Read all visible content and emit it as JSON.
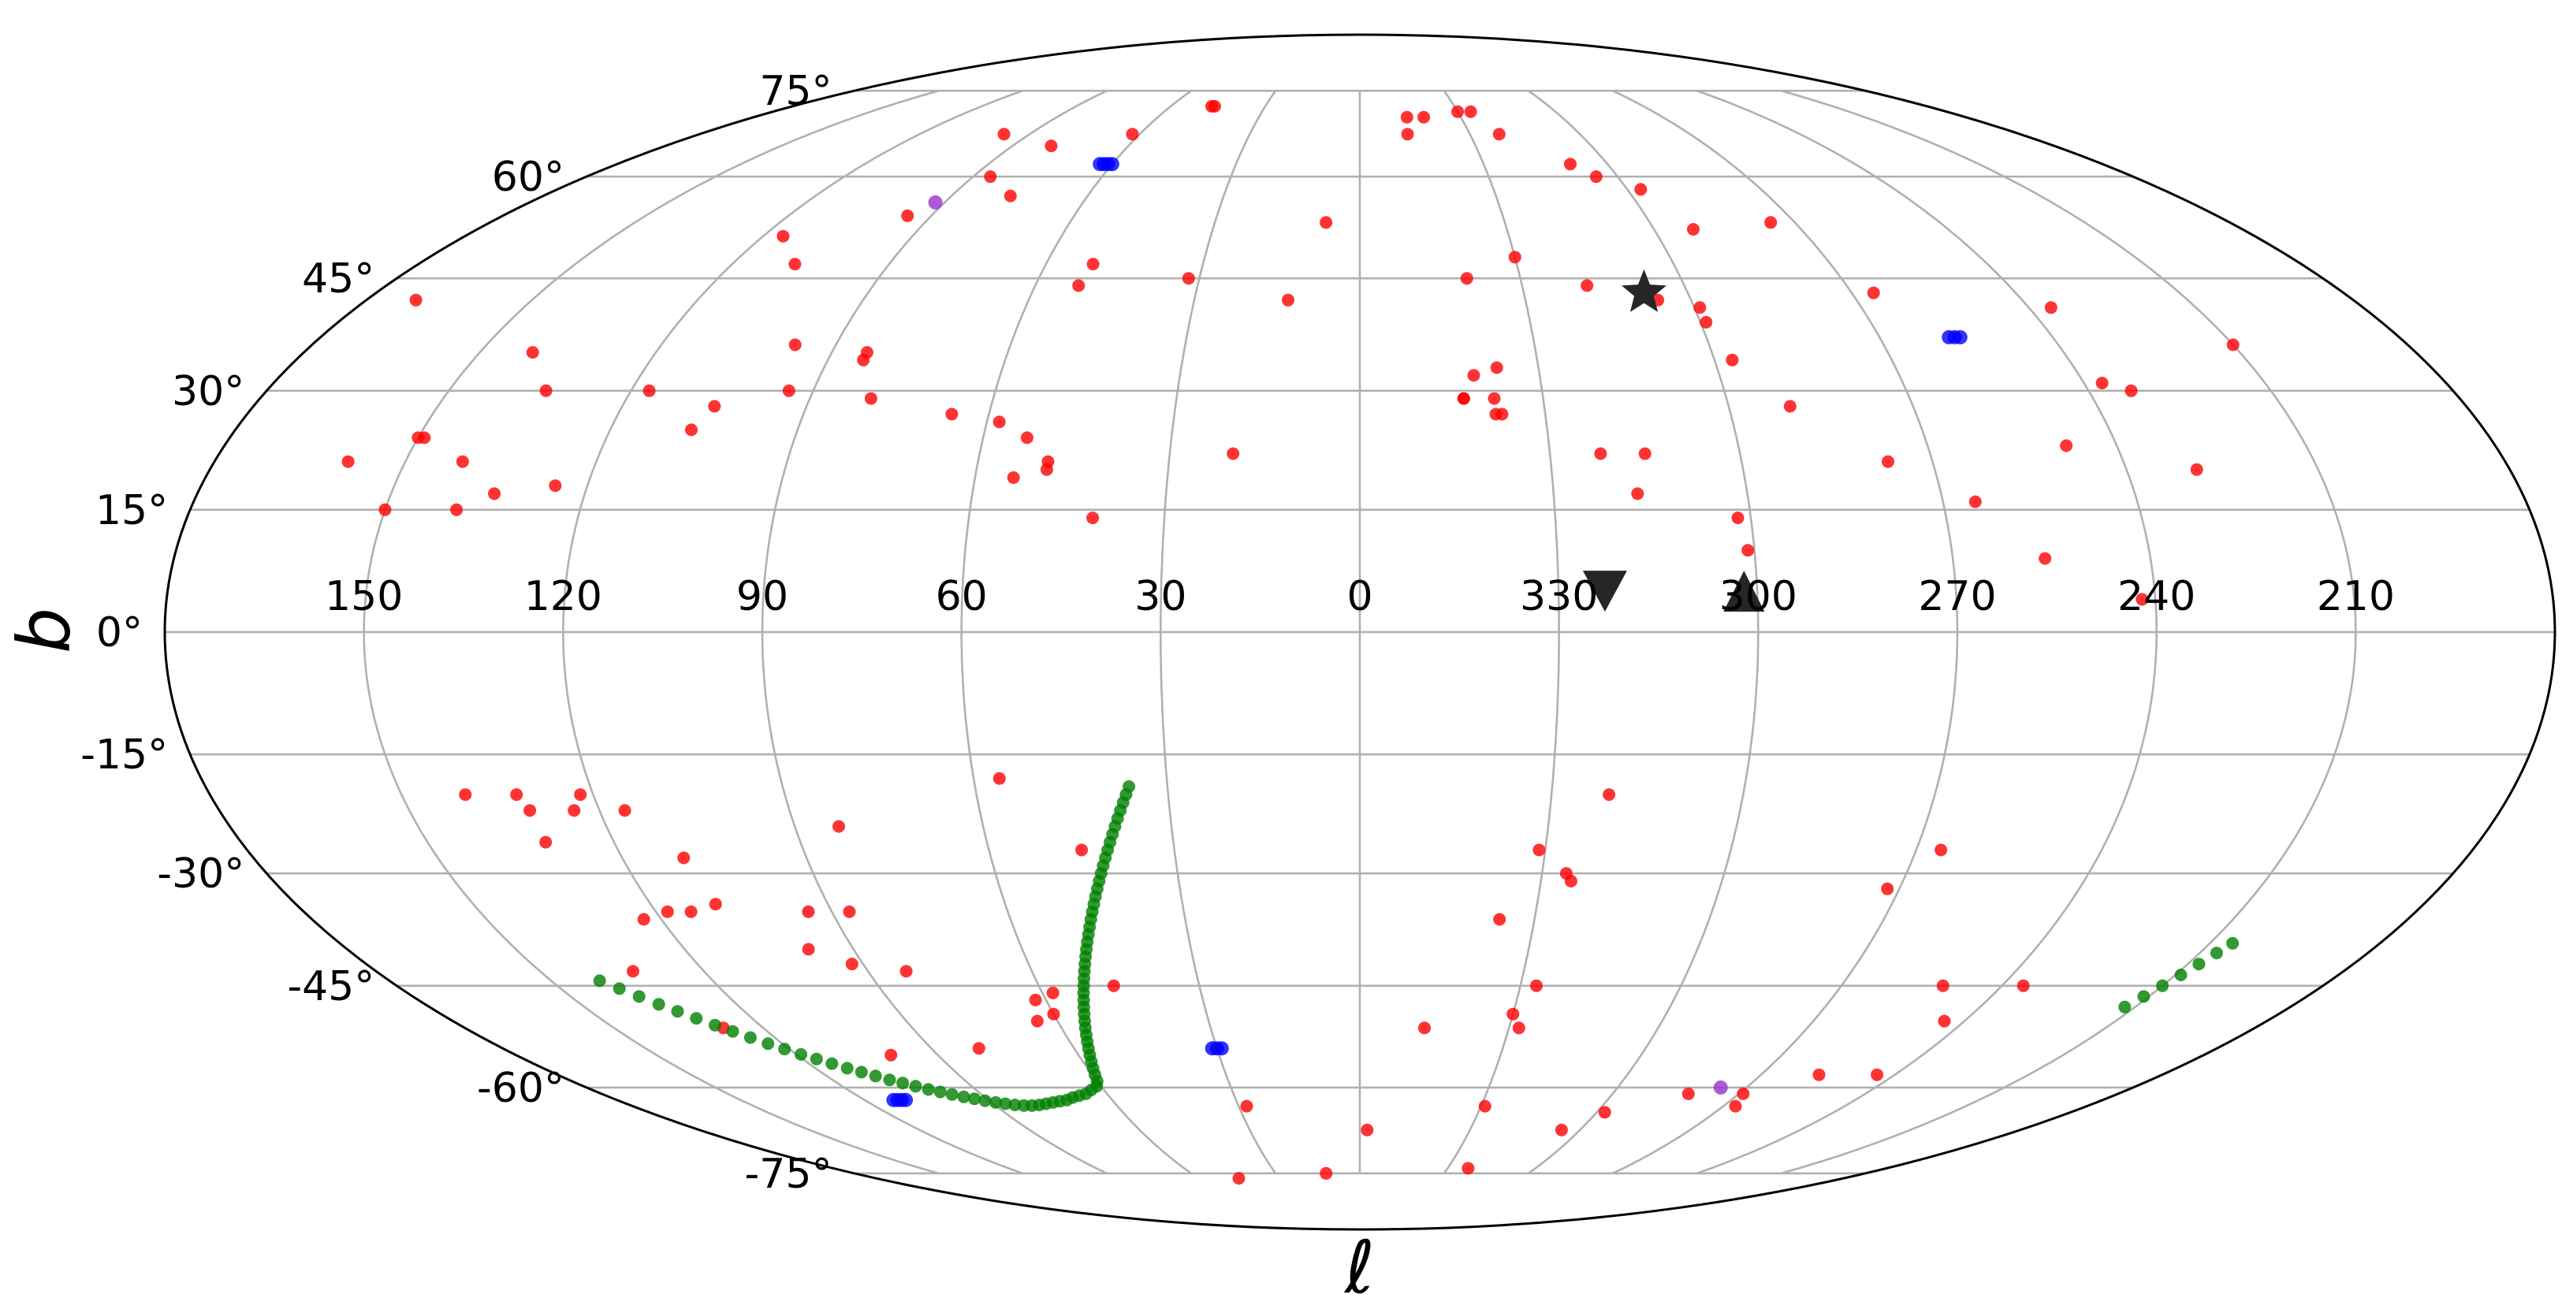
{
  "chart_data": {
    "type": "scatter",
    "projection": "mollweide",
    "grid": true,
    "xlabel": "ℓ",
    "ylabel": "b",
    "xticks": [
      "150",
      "120",
      "90",
      "60",
      "30",
      "0",
      "330",
      "300",
      "270",
      "240",
      "210"
    ],
    "yticks": [
      "75°",
      "60°",
      "45°",
      "30°",
      "15°",
      "0°",
      "-15°",
      "-30°",
      "-45°",
      "-60°",
      "-75°"
    ],
    "colors": {
      "red": "#ff0000",
      "blue": "#0000ff",
      "green": "#008000",
      "purple": "#9932cc",
      "marker": "#262626"
    },
    "series": [
      {
        "color": "red",
        "points": [
          [
            47,
            72
          ],
          [
            46,
            72
          ],
          [
            80,
            65
          ],
          [
            -30,
            71
          ],
          [
            -34,
            71
          ],
          [
            -19,
            70
          ],
          [
            -14,
            70
          ],
          [
            -13,
            67
          ],
          [
            -38,
            67
          ],
          [
            -51,
            62
          ],
          [
            -55,
            60
          ],
          [
            -63,
            58
          ],
          [
            -85,
            53
          ],
          [
            -68,
            52
          ],
          [
            -94,
            43
          ],
          [
            97,
            67
          ],
          [
            62,
            67
          ],
          [
            77,
            57
          ],
          [
            95,
            54
          ],
          [
            86,
            60
          ],
          [
            108,
            47
          ],
          [
            116,
            51
          ],
          [
            171,
            42
          ],
          [
            141,
            35
          ],
          [
            117,
            30
          ],
          [
            134,
            30
          ],
          [
            149,
            24
          ],
          [
            141,
            21
          ],
          [
            84,
            35
          ],
          [
            52,
            44
          ],
          [
            51,
            47
          ],
          [
            32,
            45
          ],
          [
            13,
            42
          ],
          [
            7,
            53
          ],
          [
            -20,
            45
          ],
          [
            -30,
            48
          ],
          [
            -42,
            44
          ],
          [
            -61,
            41
          ],
          [
            -61,
            39
          ],
          [
            -54,
            42
          ],
          [
            -23,
            33
          ],
          [
            -38,
            22
          ],
          [
            -124,
            41
          ],
          [
            -123,
            31
          ],
          [
            -127,
            30
          ],
          [
            -150,
            36
          ],
          [
            -112,
            23
          ],
          [
            -131,
            20
          ],
          [
            -63,
            34
          ],
          [
            -70,
            28
          ],
          [
            -83,
            21
          ],
          [
            -95,
            16
          ],
          [
            -104,
            9
          ],
          [
            -118,
            4
          ],
          [
            -17,
            29
          ],
          [
            -17,
            29
          ],
          [
            -22,
            29
          ],
          [
            -22,
            27
          ],
          [
            -23,
            27
          ],
          [
            -45,
            22
          ],
          [
            -43,
            17
          ],
          [
            -58,
            14
          ],
          [
            -59,
            10
          ],
          [
            -19,
            32
          ],
          [
            66,
            27
          ],
          [
            58,
            26
          ],
          [
            54,
            19
          ],
          [
            53,
            24
          ],
          [
            49,
            21
          ],
          [
            49,
            20
          ],
          [
            41,
            14
          ],
          [
            20,
            22
          ],
          [
            97,
            36
          ],
          [
            94,
            30
          ],
          [
            80,
            29
          ],
          [
            107,
            25
          ],
          [
            105,
            28
          ],
          [
            84,
            34
          ],
          [
            150,
            24
          ],
          [
            150,
            15
          ],
          [
            159,
            21
          ],
          [
            134,
            17
          ],
          [
            139,
            15
          ],
          [
            125,
            18
          ],
          [
            -39,
            -20
          ],
          [
            -29,
            -27
          ],
          [
            -34,
            -30
          ],
          [
            -88,
            -32
          ],
          [
            -94,
            -27
          ],
          [
            -109,
            -45
          ],
          [
            -116,
            -50
          ],
          [
            -124,
            -45
          ],
          [
            -91,
            -61
          ],
          [
            122,
            -20
          ],
          [
            116,
            -22
          ],
          [
            131,
            -22
          ],
          [
            124,
            -22
          ],
          [
            131,
            -26
          ],
          [
            140,
            -20
          ],
          [
            132,
            -20
          ],
          [
            110,
            -28
          ],
          [
            109,
            -34
          ],
          [
            118,
            -35
          ],
          [
            114,
            -35
          ],
          [
            123,
            -36
          ],
          [
            133,
            -43
          ],
          [
            128,
            -51
          ],
          [
            94,
            -35
          ],
          [
            92,
            -42
          ],
          [
            87,
            -35
          ],
          [
            98,
            -40
          ],
          [
            83,
            -43
          ],
          [
            80,
            -54
          ],
          [
            100,
            -55
          ],
          [
            83,
            -24
          ],
          [
            56,
            -18
          ],
          [
            45,
            -27
          ],
          [
            58,
            -46
          ],
          [
            62,
            -47
          ],
          [
            60,
            -49
          ],
          [
            46,
            -45
          ],
          [
            64,
            -50
          ],
          [
            28,
            -63
          ],
          [
            12,
            -75
          ],
          [
            45,
            -76
          ],
          [
            -2,
            -67
          ],
          [
            -31,
            -63
          ],
          [
            -37,
            -74
          ],
          [
            -13,
            -51
          ],
          [
            -33,
            -45
          ],
          [
            -30,
            -49
          ],
          [
            -24,
            -36
          ],
          [
            -35,
            -31
          ],
          [
            -32,
            -51
          ],
          [
            -55,
            -67
          ],
          [
            -62,
            -64
          ],
          [
            -78,
            -61
          ],
          [
            -93,
            -63
          ],
          [
            -103,
            -58
          ],
          [
            -116,
            -58
          ]
        ]
      },
      {
        "color": "blue",
        "points": [
          [
            62,
            62
          ],
          [
            63,
            62
          ],
          [
            61,
            62
          ],
          [
            60,
            62
          ],
          [
            -103,
            37
          ],
          [
            -102,
            37
          ],
          [
            -104,
            37
          ],
          [
            29,
            -54
          ],
          [
            30,
            -54
          ],
          [
            31,
            -54
          ],
          [
            111,
            -62
          ],
          [
            112,
            -62
          ],
          [
            113,
            -62
          ],
          [
            110,
            -62
          ]
        ]
      },
      {
        "color": "purple",
        "points": [
          [
            92,
            56
          ],
          [
            -84,
            -60
          ]
        ]
      },
      {
        "color": "green",
        "points": [
          [
            36,
            -19
          ],
          [
            36.6,
            -20
          ],
          [
            37.2,
            -21
          ],
          [
            37.8,
            -22
          ],
          [
            38.4,
            -23
          ],
          [
            39,
            -24
          ],
          [
            39.6,
            -25
          ],
          [
            40.2,
            -26
          ],
          [
            40.8,
            -27
          ],
          [
            41.4,
            -28
          ],
          [
            42,
            -29
          ],
          [
            42.6,
            -30
          ],
          [
            43.2,
            -31
          ],
          [
            43.8,
            -32
          ],
          [
            44.4,
            -33
          ],
          [
            45,
            -34
          ],
          [
            45.6,
            -35
          ],
          [
            46.2,
            -36
          ],
          [
            46.8,
            -37
          ],
          [
            47.4,
            -38
          ],
          [
            48,
            -39
          ],
          [
            48.6,
            -40
          ],
          [
            49.2,
            -41
          ],
          [
            49.8,
            -42
          ],
          [
            50.4,
            -43
          ],
          [
            51,
            -44
          ],
          [
            51.6,
            -45
          ],
          [
            52.2,
            -46
          ],
          [
            52.8,
            -47
          ],
          [
            53.4,
            -48
          ],
          [
            54,
            -49
          ],
          [
            54.6,
            -50
          ],
          [
            55.2,
            -51
          ],
          [
            55.8,
            -52
          ],
          [
            56.4,
            -53
          ],
          [
            57,
            -54
          ],
          [
            57.6,
            -55
          ],
          [
            58.2,
            -56
          ],
          [
            58.8,
            -57
          ],
          [
            59.4,
            -58
          ],
          [
            60,
            -59
          ],
          [
            61,
            -59.8
          ],
          [
            63,
            -60.4
          ],
          [
            65,
            -61
          ],
          [
            67,
            -61.3
          ],
          [
            69,
            -61.6
          ],
          [
            71,
            -62
          ],
          [
            73,
            -62.2
          ],
          [
            75,
            -62.4
          ],
          [
            77,
            -62.6
          ],
          [
            79,
            -62.8
          ],
          [
            81,
            -62.9
          ],
          [
            83,
            -62.9
          ],
          [
            85,
            -62.8
          ],
          [
            87,
            -62.6
          ],
          [
            89,
            -62.4
          ],
          [
            91,
            -62.1
          ],
          [
            93,
            -61.8
          ],
          [
            95,
            -61.5
          ],
          [
            97,
            -61.1
          ],
          [
            99,
            -60.7
          ],
          [
            101,
            -60.3
          ],
          [
            103,
            -59.8
          ],
          [
            105,
            -59.3
          ],
          [
            107,
            -58.8
          ],
          [
            109,
            -58.2
          ],
          [
            111,
            -57.6
          ],
          [
            113,
            -57
          ],
          [
            115,
            -56.3
          ],
          [
            117,
            -55.6
          ],
          [
            119,
            -54.9
          ],
          [
            121,
            -54.1
          ],
          [
            123,
            -53.3
          ],
          [
            125,
            -52.4
          ],
          [
            127,
            -51.5
          ],
          [
            129,
            -50.6
          ],
          [
            131,
            -49.6
          ],
          [
            133,
            -48.6
          ],
          [
            135,
            -47.6
          ],
          [
            137,
            -46.5
          ],
          [
            139,
            -45.4
          ],
          [
            141,
            -44.3
          ],
          [
            -148,
            -48
          ],
          [
            -149,
            -46.5
          ],
          [
            -150,
            -45
          ],
          [
            -151,
            -43.5
          ],
          [
            -152,
            -42
          ],
          [
            -153,
            -40.5
          ],
          [
            -154,
            -39.2
          ]
        ]
      }
    ],
    "markers": [
      {
        "shape": "star",
        "l": -52,
        "b": 43
      },
      {
        "shape": "triangle-down",
        "l": -37,
        "b": 5
      },
      {
        "shape": "triangle-up",
        "l": -58,
        "b": 5
      }
    ]
  }
}
